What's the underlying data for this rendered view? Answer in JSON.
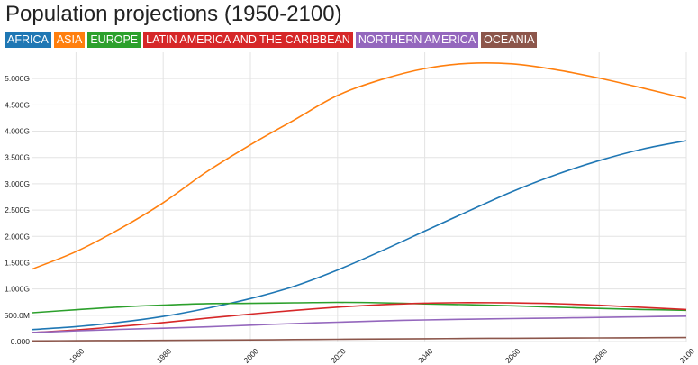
{
  "chart_data": {
    "type": "line",
    "title": "Population projections (1950-2100)",
    "xlabel": "",
    "ylabel": "",
    "xlim": [
      1950,
      2100
    ],
    "ylim": [
      0,
      5500000000
    ],
    "grid": true,
    "legend_position": "top-left",
    "x_ticks": [
      "1960",
      "1980",
      "2000",
      "2020",
      "2040",
      "2060",
      "2080",
      "2100"
    ],
    "y_ticks": [
      "0.000",
      "500.0M",
      "1.000G",
      "1.500G",
      "2.000G",
      "2.500G",
      "3.000G",
      "3.500G",
      "4.000G",
      "4.500G",
      "5.000G"
    ],
    "x": [
      1950,
      1960,
      1970,
      1980,
      1990,
      2000,
      2010,
      2020,
      2030,
      2040,
      2050,
      2060,
      2070,
      2080,
      2090,
      2100
    ],
    "series": [
      {
        "name": "AFRICA",
        "color": "#1f77b4",
        "values": [
          228000000,
          285000000,
          366000000,
          478000000,
          632000000,
          818000000,
          1050000000,
          1360000000,
          1720000000,
          2100000000,
          2480000000,
          2850000000,
          3170000000,
          3440000000,
          3660000000,
          3820000000
        ]
      },
      {
        "name": "ASIA",
        "color": "#ff7f0e",
        "values": [
          1380000000,
          1710000000,
          2140000000,
          2640000000,
          3230000000,
          3740000000,
          4210000000,
          4680000000,
          4980000000,
          5190000000,
          5290000000,
          5280000000,
          5170000000,
          5010000000,
          4820000000,
          4620000000
        ]
      },
      {
        "name": "EUROPE",
        "color": "#2ca02c",
        "values": [
          549000000,
          605000000,
          657000000,
          694000000,
          721000000,
          726000000,
          736000000,
          745000000,
          737000000,
          717000000,
          700000000,
          680000000,
          655000000,
          630000000,
          610000000,
          595000000
        ]
      },
      {
        "name": "LATIN AMERICA AND THE CARIBBEAN",
        "color": "#d62728",
        "values": [
          169000000,
          220000000,
          287000000,
          362000000,
          443000000,
          522000000,
          593000000,
          654000000,
          700000000,
          730000000,
          740000000,
          735000000,
          720000000,
          690000000,
          650000000,
          610000000
        ]
      },
      {
        "name": "NORTHERN AMERICA",
        "color": "#9467bd",
        "values": [
          173000000,
          204000000,
          231000000,
          254000000,
          280000000,
          312000000,
          343000000,
          368000000,
          393000000,
          412000000,
          425000000,
          437000000,
          448000000,
          460000000,
          472000000,
          483000000
        ]
      },
      {
        "name": "OCEANIA",
        "color": "#8c564b",
        "values": [
          12700000,
          15800000,
          19700000,
          22900000,
          27000000,
          31200000,
          36900000,
          42700000,
          48500000,
          53800000,
          58500000,
          62500000,
          65800000,
          69000000,
          72000000,
          74900000
        ]
      }
    ]
  }
}
